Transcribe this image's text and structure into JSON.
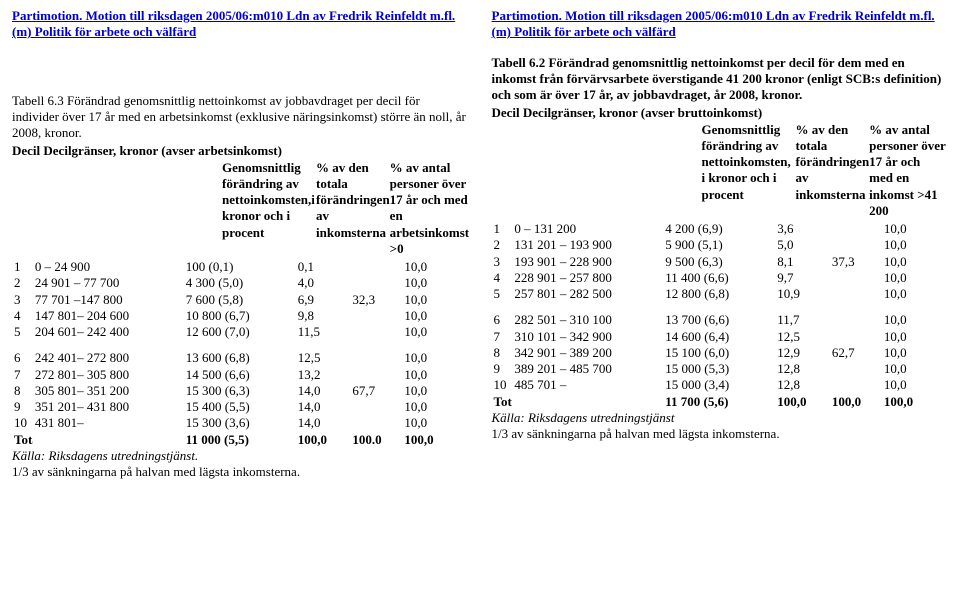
{
  "left": {
    "doclink": "Partimotion. Motion till riksdagen 2005/06:m010 Ldn av Fredrik Reinfeldt m.fl. (m) Politik för arbete och välfärd",
    "caption": "Tabell 6.3 Förändrad genomsnittlig nettoinkomst av jobbavdraget per decil för individer över 17 år med en arbetsinkomst (exklusive näringsinkomst) större än noll, år 2008, kronor.",
    "subhead": "Decil Decilgränser, kronor (avser arbetsinkomst)",
    "head_change": "Genomsnittlig förändring av nettoinkomsten,i kronor och i procent",
    "head_pctinc": "% av den totala förändringen av inkomsterna",
    "head_pctpers": "% av antal personer över 17 år och med en arbetsinkomst >0",
    "rows": [
      [
        "1",
        "0 – 24 900",
        "100 (0,1)",
        "0,1",
        "",
        "10,0"
      ],
      [
        "2",
        "24 901 – 77 700",
        "4 300 (5,0)",
        "4,0",
        "",
        "10,0"
      ],
      [
        "3",
        "77 701 –147 800",
        "7 600 (5,8)",
        "6,9",
        "32,3",
        "10,0"
      ],
      [
        "4",
        "147 801– 204 600",
        "10 800 (6,7)",
        "9,8",
        "",
        "10,0"
      ],
      [
        "5",
        "204 601– 242 400",
        "12 600 (7,0)",
        "11,5",
        "",
        "10,0"
      ]
    ],
    "rows2": [
      [
        "6",
        "242 401– 272 800",
        "13 600 (6,8)",
        "12,5",
        "",
        "10,0"
      ],
      [
        "7",
        "272 801– 305 800",
        "14 500 (6,6)",
        "13,2",
        "",
        "10,0"
      ],
      [
        "8",
        "305 801– 351 200",
        "15 300 (6,3)",
        "14,0",
        "67,7",
        "10,0"
      ],
      [
        "9",
        "351 201– 431 800",
        "15 400 (5,5)",
        "14,0",
        "",
        "10,0"
      ],
      [
        "10",
        "431 801–",
        "15 300 (3,6)",
        "14,0",
        "",
        "10,0"
      ]
    ],
    "total": [
      "Totalt",
      "",
      "11 000 (5,5)",
      "100,0",
      "100.0",
      "100,0"
    ],
    "source": "Källa: Riksdagens utredningstjänst.",
    "footnote2": "1/3 av sänkningarna på  halvan med lägsta inkomsterna."
  },
  "right": {
    "doclink": "Partimotion. Motion till riksdagen 2005/06:m010 Ldn av Fredrik Reinfeldt m.fl. (m) Politik för arbete och välfärd",
    "caption": "Tabell 6.2 Förändrad genomsnittlig nettoinkomst per decil för dem med en inkomst från förvärvsarbete överstigande 41 200 kronor (enligt SCB:s definition) och som är över 17 år, av jobbavdraget, år 2008, kronor.",
    "subhead": "Decil Decilgränser, kronor (avser bruttoinkomst)",
    "head_change": "Genomsnittlig förändring av nettoinkomsten, i kronor och i procent",
    "head_pctinc": "% av den totala förändringen av inkomsterna",
    "head_pctpers": "% av antal personer över 17 år och med en inkomst >41 200",
    "rows": [
      [
        "1",
        "0 – 131 200",
        "4 200 (6,9)",
        "3,6",
        "",
        "10,0"
      ],
      [
        "2",
        "131 201 – 193 900",
        "5 900 (5,1)",
        "5,0",
        "",
        "10,0"
      ],
      [
        "3",
        "193 901 – 228 900",
        "9 500 (6,3)",
        "8,1",
        "37,3",
        "10,0"
      ],
      [
        "4",
        "228 901 – 257 800",
        "11 400 (6,6)",
        "9,7",
        "",
        "10,0"
      ],
      [
        "5",
        "257 801 – 282 500",
        "12 800 (6,8)",
        "10,9",
        "",
        "10,0"
      ]
    ],
    "rows2": [
      [
        "6",
        "282 501 – 310 100",
        "13 700 (6,6)",
        "11,7",
        "",
        "10,0"
      ],
      [
        "7",
        "310 101 – 342 900",
        "14 600 (6,4)",
        "12,5",
        "",
        "10,0"
      ],
      [
        "8",
        "342 901 – 389 200",
        "15 100 (6,0)",
        "12,9",
        "62,7",
        "10,0"
      ],
      [
        "9",
        "389 201 – 485 700",
        "15 000 (5,3)",
        "12,8",
        "",
        "10,0"
      ],
      [
        "10",
        "485 701 –",
        "15 000 (3,4)",
        "12,8",
        "",
        "10,0"
      ]
    ],
    "total": [
      "Totalt",
      "",
      "11 700 (5,6)",
      "100,0",
      "100,0",
      "100,0"
    ],
    "source": "Källa: Riksdagens utredningstjänst",
    "footnote2": "1/3 av sänkningarna på  halvan med lägsta inkomsterna."
  }
}
